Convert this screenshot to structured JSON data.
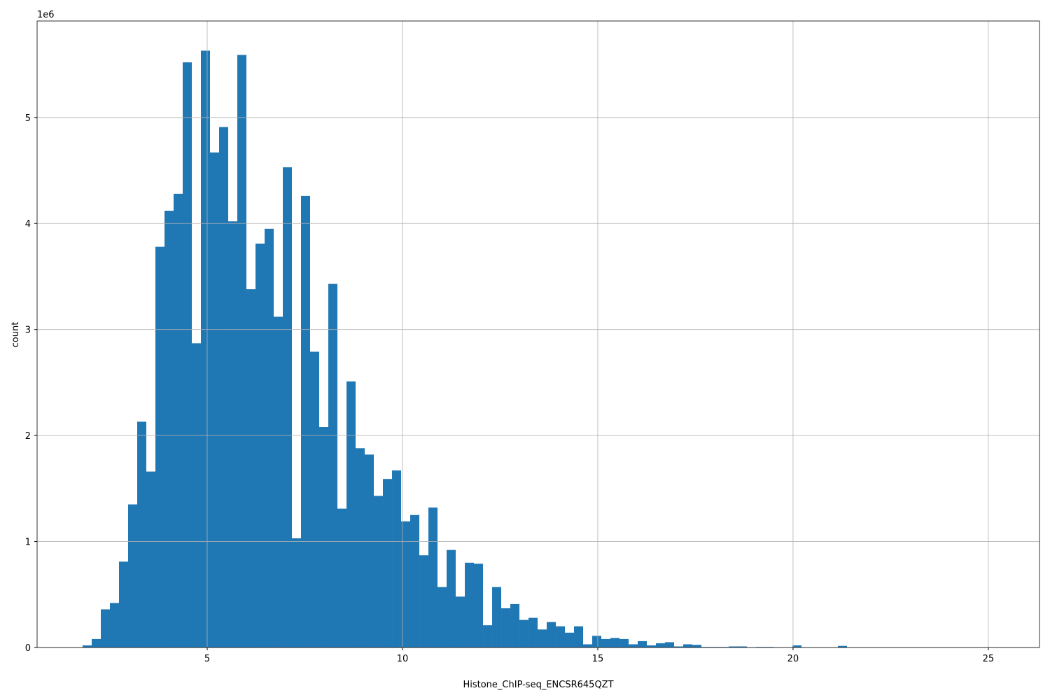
{
  "chart_data": {
    "type": "histogram",
    "xlabel": "Histone_ChIP-seq_ENCSR645QZT",
    "ylabel": "count",
    "y_offset_label": "1e6",
    "color": "#1f77b4",
    "grid": true,
    "bins": [
      1.81,
      2.043,
      2.276,
      2.509,
      2.742,
      2.975,
      3.208,
      3.441,
      3.674,
      3.907,
      4.14,
      4.373,
      4.606,
      4.839,
      5.072,
      5.305,
      5.538,
      5.771,
      6.004,
      6.237,
      6.47,
      6.703,
      6.936,
      7.169,
      7.402,
      7.635,
      7.868,
      8.101,
      8.334,
      8.567,
      8.8,
      9.033,
      9.266,
      9.499,
      9.732,
      9.965,
      10.198,
      10.431,
      10.664,
      10.897,
      11.13,
      11.363,
      11.596,
      11.829,
      12.062,
      12.295,
      12.528,
      12.761,
      12.994,
      13.227,
      13.46,
      13.693,
      13.926,
      14.159,
      14.392,
      14.625,
      14.858,
      15.091,
      15.324,
      15.557,
      15.79,
      16.023,
      16.256,
      16.489,
      16.722,
      16.955,
      17.188,
      17.421,
      17.654,
      17.887,
      18.12,
      18.353,
      18.586,
      18.819,
      19.052,
      19.285,
      19.518,
      19.751,
      19.984,
      20.217,
      20.45,
      20.683,
      20.916,
      21.149,
      21.382,
      21.615,
      21.848,
      22.081,
      22.314,
      22.547,
      22.78,
      23.013,
      23.246,
      23.479,
      23.712,
      23.945,
      24.178,
      24.411,
      24.644,
      24.877,
      25.11
    ],
    "values": [
      20000,
      80000,
      360000,
      420000,
      810000,
      1350000,
      2130000,
      1660000,
      3780000,
      4120000,
      4280000,
      5520000,
      2870000,
      5630000,
      4670000,
      4910000,
      4020000,
      5590000,
      3380000,
      3810000,
      3950000,
      3120000,
      4530000,
      1030000,
      4260000,
      2790000,
      2080000,
      3430000,
      1310000,
      2510000,
      1880000,
      1820000,
      1430000,
      1590000,
      1670000,
      1190000,
      1250000,
      870000,
      1320000,
      570000,
      920000,
      480000,
      800000,
      790000,
      210000,
      570000,
      370000,
      410000,
      260000,
      280000,
      170000,
      240000,
      200000,
      140000,
      200000,
      30000,
      110000,
      80000,
      90000,
      80000,
      30000,
      60000,
      20000,
      40000,
      50000,
      10000,
      30000,
      25000,
      5000,
      5000,
      5000,
      10000,
      10000,
      2000,
      5000,
      5000,
      0,
      2000,
      20000,
      0,
      0,
      0,
      0,
      15000,
      0,
      0,
      0,
      0,
      0,
      0,
      0,
      0,
      0,
      0,
      0,
      0,
      0,
      0,
      0,
      1000
    ],
    "xlim": [
      0.645,
      26.31
    ],
    "ylim": [
      0,
      5910000
    ],
    "xticks": [
      5,
      10,
      15,
      20,
      25
    ],
    "yticks": [
      0,
      {
        "value": 1000000,
        "label": "1"
      },
      {
        "value": 2000000,
        "label": "2"
      },
      {
        "value": 3000000,
        "label": "3"
      },
      {
        "value": 4000000,
        "label": "4"
      },
      {
        "value": 5000000,
        "label": "5"
      }
    ]
  }
}
